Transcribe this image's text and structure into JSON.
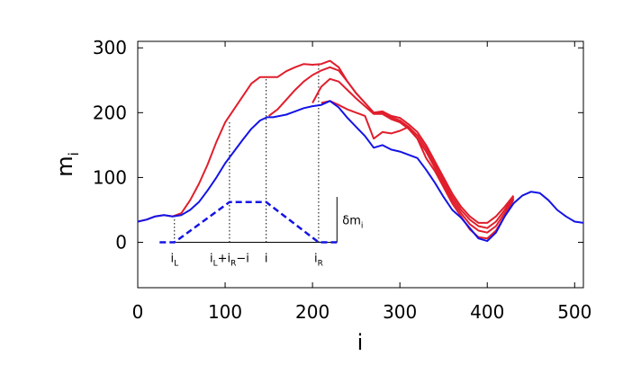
{
  "chart_data": {
    "type": "line",
    "xlabel": "i",
    "ylabel": "m",
    "ylabel_sub": "i",
    "xlim": [
      0,
      510
    ],
    "ylim": [
      -70,
      310
    ],
    "x_ticks": [
      0,
      100,
      200,
      300,
      400,
      500
    ],
    "y_ticks": [
      0,
      100,
      200,
      300
    ],
    "grid": false,
    "colors": {
      "blue": "#1414e6",
      "red": "#e01e2c"
    },
    "series": [
      {
        "color": "blue",
        "x": [
          0,
          10,
          20,
          30,
          40,
          50,
          60,
          70,
          80,
          90,
          100,
          110,
          120,
          130,
          140,
          148,
          155,
          170,
          180,
          190,
          200,
          210,
          220,
          230,
          240,
          250,
          260,
          270,
          280,
          290,
          300,
          310,
          320,
          330,
          340,
          350,
          360,
          370,
          380,
          390,
          400,
          410,
          420,
          430,
          440,
          450,
          460,
          470,
          480,
          490,
          500,
          510
        ],
        "y": [
          32,
          35,
          40,
          42,
          40,
          42,
          50,
          62,
          80,
          100,
          122,
          140,
          158,
          175,
          188,
          193,
          193,
          197,
          202,
          207,
          210,
          212,
          218,
          208,
          192,
          178,
          164,
          146,
          150,
          143,
          140,
          135,
          130,
          112,
          92,
          70,
          50,
          38,
          22,
          6,
          2,
          15,
          40,
          60,
          72,
          78,
          76,
          65,
          50,
          40,
          32,
          30
        ]
      },
      {
        "color": "red",
        "x": [
          0,
          10,
          20,
          30,
          40,
          50,
          60,
          70,
          80,
          90,
          100,
          110,
          120,
          130,
          140,
          150,
          160,
          170,
          180,
          190,
          200,
          210,
          220,
          230,
          240,
          250,
          260,
          270,
          280,
          290,
          300,
          310,
          320,
          330,
          340,
          350,
          360,
          370,
          380,
          390,
          400,
          410,
          420,
          430
        ],
        "y": [
          32,
          35,
          40,
          42,
          40,
          45,
          65,
          90,
          120,
          155,
          185,
          205,
          225,
          245,
          255,
          255,
          255,
          264,
          270,
          275,
          274,
          275,
          280,
          270,
          248,
          230,
          215,
          200,
          202,
          195,
          192,
          182,
          170,
          150,
          125,
          100,
          75,
          55,
          40,
          30,
          30,
          40,
          55,
          72
        ]
      },
      {
        "color": "red",
        "x": [
          150,
          160,
          170,
          180,
          190,
          200,
          210,
          220,
          230,
          240,
          250,
          260,
          270,
          280,
          290,
          300,
          310,
          320,
          330,
          340,
          350,
          360,
          370,
          380,
          390,
          400,
          410,
          420,
          430
        ],
        "y": [
          195,
          205,
          220,
          235,
          248,
          258,
          265,
          270,
          265,
          248,
          230,
          215,
          200,
          200,
          193,
          188,
          178,
          165,
          145,
          120,
          95,
          70,
          50,
          35,
          25,
          22,
          32,
          50,
          70
        ]
      },
      {
        "color": "red",
        "x": [
          200,
          210,
          220,
          230,
          240,
          250,
          260,
          270,
          280,
          290,
          300,
          310,
          320,
          330,
          340,
          350,
          360,
          370,
          380,
          390,
          400,
          410,
          420,
          430
        ],
        "y": [
          215,
          240,
          252,
          248,
          235,
          222,
          210,
          198,
          198,
          190,
          185,
          175,
          160,
          140,
          115,
          90,
          65,
          45,
          28,
          18,
          15,
          25,
          45,
          68
        ]
      },
      {
        "color": "red",
        "x": [
          210,
          220,
          230,
          240,
          250,
          260,
          270,
          280,
          290,
          300,
          310,
          320,
          330,
          340,
          350,
          360,
          370,
          380,
          390,
          400,
          410,
          420,
          430
        ],
        "y": [
          215,
          218,
          212,
          205,
          200,
          195,
          160,
          170,
          168,
          172,
          178,
          160,
          130,
          110,
          85,
          60,
          40,
          20,
          8,
          6,
          18,
          40,
          66
        ]
      }
    ],
    "kernel": {
      "color": "blue",
      "x": [
        25,
        42,
        105,
        147,
        207,
        228
      ],
      "y": [
        0,
        0,
        62,
        62,
        0,
        0
      ]
    },
    "baseline": {
      "x": [
        42,
        228
      ],
      "y": 0
    },
    "bracket": {
      "x": 228,
      "y": [
        0,
        70
      ]
    },
    "guides": [
      {
        "x": 42,
        "y1": 0,
        "y2": 40
      },
      {
        "x": 105,
        "y1": 0,
        "y2": 188
      },
      {
        "x": 147,
        "y1": 0,
        "y2": 256
      },
      {
        "x": 207,
        "y1": 0,
        "y2": 274
      }
    ],
    "annotations": {
      "i_L": {
        "main": "i",
        "sub": "L",
        "x": 42
      },
      "mid": {
        "p1": "i",
        "s1": "L",
        "p2": "+i",
        "s2": "R",
        "p3": "−i",
        "x": 105
      },
      "i": {
        "main": "i",
        "x": 147
      },
      "i_R": {
        "main": "i",
        "sub": "R",
        "x": 207
      },
      "delta": {
        "main": "δm",
        "sub": "i",
        "x": 228
      }
    }
  }
}
